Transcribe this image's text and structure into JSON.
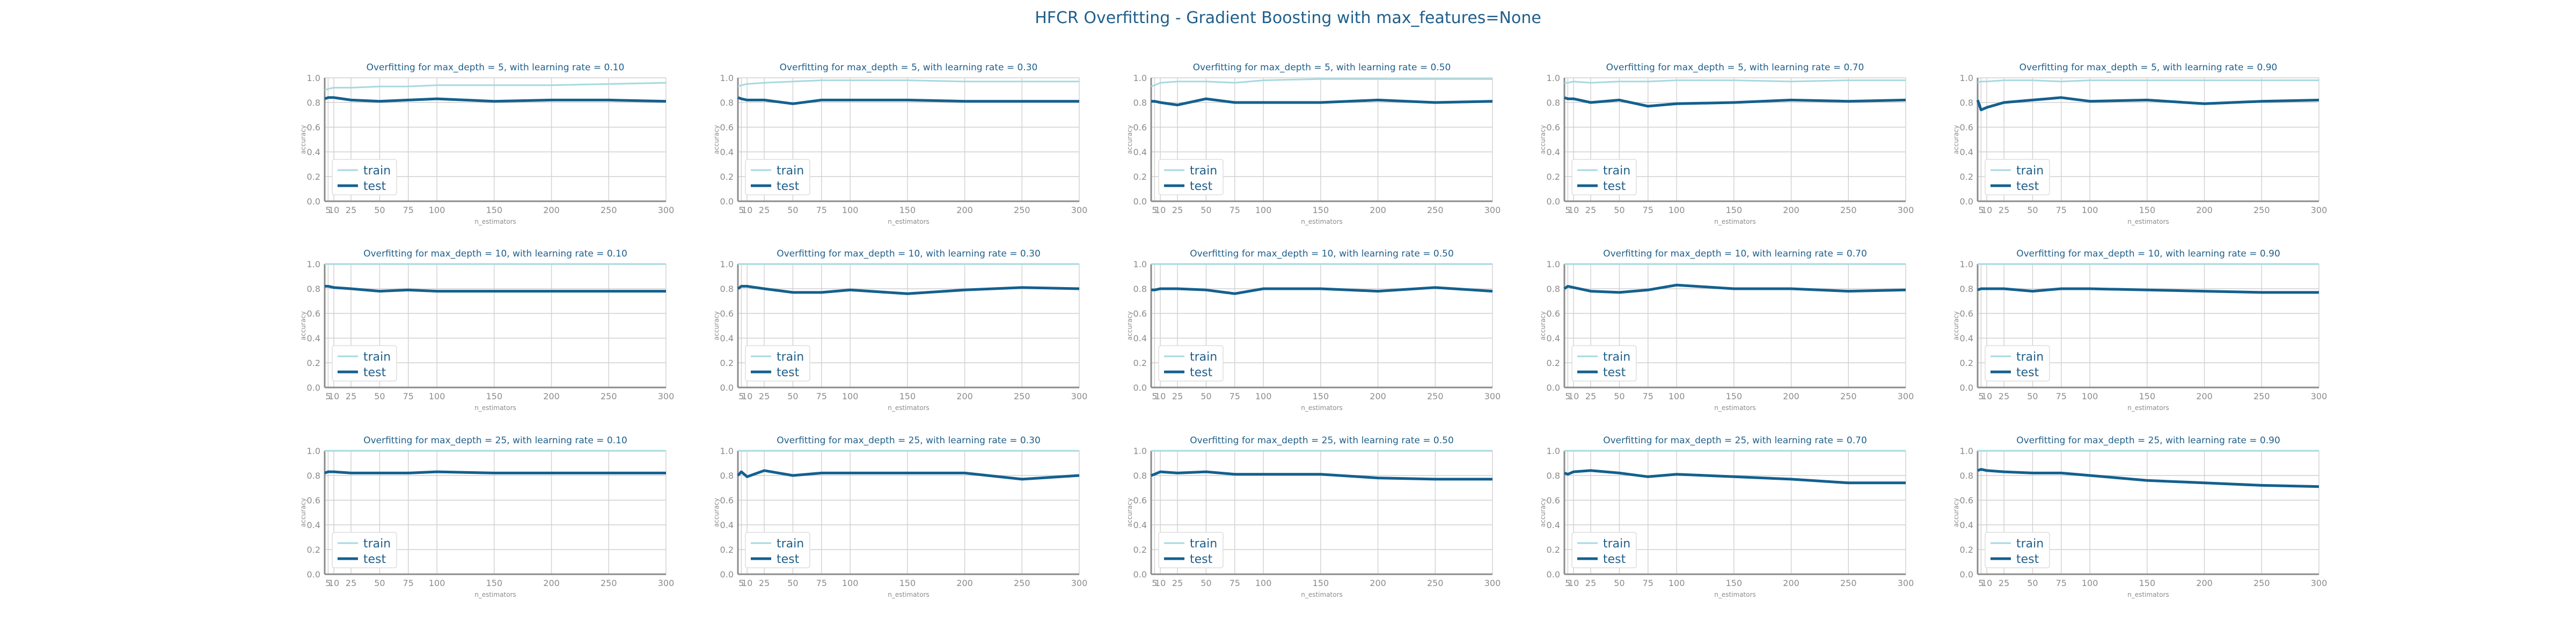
{
  "title": "HFCR Overfitting - Gradient Boosting with max_features=None",
  "colors": {
    "train": "#a6d9e0",
    "test": "#13608f",
    "title": "#1f5f8b",
    "grid": "#d0d0d0",
    "axis": "#8c8c8c"
  },
  "chart_data": {
    "type": "line",
    "layout": "grid 3 rows x 5 columns",
    "grid": true,
    "legend_position": "lower-left",
    "xlabel": "n_estimators",
    "ylabel": "accuracy",
    "xlim": [
      2,
      300
    ],
    "ylim": [
      0.0,
      1.0
    ],
    "x": [
      2,
      5,
      10,
      25,
      50,
      75,
      100,
      150,
      200,
      250,
      300
    ],
    "x_ticks": [
      5,
      10,
      25,
      50,
      75,
      100,
      150,
      200,
      250,
      300
    ],
    "y_ticks": [
      0.0,
      0.2,
      0.4,
      0.6,
      0.8,
      1.0
    ],
    "series_names": [
      "train",
      "test"
    ],
    "subplots": [
      {
        "title": "Overfitting for max_depth = 5, with learning rate = 0.10",
        "series": [
          {
            "name": "train",
            "values": [
              0.9,
              0.91,
              0.92,
              0.92,
              0.93,
              0.93,
              0.94,
              0.94,
              0.94,
              0.95,
              0.96
            ]
          },
          {
            "name": "test",
            "values": [
              0.83,
              0.84,
              0.84,
              0.82,
              0.81,
              0.82,
              0.83,
              0.81,
              0.82,
              0.82,
              0.81
            ]
          }
        ]
      },
      {
        "title": "Overfitting for max_depth = 5, with learning rate = 0.30",
        "series": [
          {
            "name": "train",
            "values": [
              0.93,
              0.94,
              0.95,
              0.96,
              0.97,
              0.98,
              0.98,
              0.98,
              0.97,
              0.97,
              0.97
            ]
          },
          {
            "name": "test",
            "values": [
              0.84,
              0.83,
              0.82,
              0.82,
              0.79,
              0.82,
              0.82,
              0.82,
              0.81,
              0.81,
              0.81
            ]
          }
        ]
      },
      {
        "title": "Overfitting for max_depth = 5, with learning rate = 0.50",
        "series": [
          {
            "name": "train",
            "values": [
              0.93,
              0.94,
              0.96,
              0.97,
              0.97,
              0.96,
              0.98,
              0.99,
              0.99,
              0.99,
              0.99
            ]
          },
          {
            "name": "test",
            "values": [
              0.81,
              0.81,
              0.8,
              0.78,
              0.83,
              0.8,
              0.8,
              0.8,
              0.82,
              0.8,
              0.81
            ]
          }
        ]
      },
      {
        "title": "Overfitting for max_depth = 5, with learning rate = 0.70",
        "series": [
          {
            "name": "train",
            "values": [
              0.96,
              0.96,
              0.97,
              0.96,
              0.97,
              0.97,
              0.98,
              0.98,
              0.97,
              0.98,
              0.98
            ]
          },
          {
            "name": "test",
            "values": [
              0.84,
              0.83,
              0.83,
              0.8,
              0.82,
              0.77,
              0.79,
              0.8,
              0.82,
              0.81,
              0.82
            ]
          }
        ]
      },
      {
        "title": "Overfitting for max_depth = 5, with learning rate = 0.90",
        "series": [
          {
            "name": "train",
            "values": [
              0.96,
              0.97,
              0.97,
              0.98,
              0.98,
              0.97,
              0.98,
              0.98,
              0.98,
              0.98,
              0.98
            ]
          },
          {
            "name": "test",
            "values": [
              0.82,
              0.74,
              0.76,
              0.8,
              0.82,
              0.84,
              0.81,
              0.82,
              0.79,
              0.81,
              0.82
            ]
          }
        ]
      },
      {
        "title": "Overfitting for max_depth = 10, with learning rate = 0.10",
        "series": [
          {
            "name": "train",
            "values": [
              1.0,
              1.0,
              1.0,
              1.0,
              1.0,
              1.0,
              1.0,
              1.0,
              1.0,
              1.0,
              1.0
            ]
          },
          {
            "name": "test",
            "values": [
              0.82,
              0.82,
              0.81,
              0.8,
              0.78,
              0.79,
              0.78,
              0.78,
              0.78,
              0.78,
              0.78
            ]
          }
        ]
      },
      {
        "title": "Overfitting for max_depth = 10, with learning rate = 0.30",
        "series": [
          {
            "name": "train",
            "values": [
              1.0,
              1.0,
              1.0,
              1.0,
              1.0,
              1.0,
              1.0,
              1.0,
              1.0,
              1.0,
              1.0
            ]
          },
          {
            "name": "test",
            "values": [
              0.8,
              0.82,
              0.82,
              0.8,
              0.77,
              0.77,
              0.79,
              0.76,
              0.79,
              0.81,
              0.8
            ]
          }
        ]
      },
      {
        "title": "Overfitting for max_depth = 10, with learning rate = 0.50",
        "series": [
          {
            "name": "train",
            "values": [
              1.0,
              1.0,
              1.0,
              1.0,
              1.0,
              1.0,
              1.0,
              1.0,
              1.0,
              1.0,
              1.0
            ]
          },
          {
            "name": "test",
            "values": [
              0.79,
              0.79,
              0.8,
              0.8,
              0.79,
              0.76,
              0.8,
              0.8,
              0.78,
              0.81,
              0.78
            ]
          }
        ]
      },
      {
        "title": "Overfitting for max_depth = 10, with learning rate = 0.70",
        "series": [
          {
            "name": "train",
            "values": [
              1.0,
              1.0,
              1.0,
              1.0,
              1.0,
              1.0,
              1.0,
              1.0,
              1.0,
              1.0,
              1.0
            ]
          },
          {
            "name": "test",
            "values": [
              0.8,
              0.82,
              0.81,
              0.78,
              0.77,
              0.79,
              0.83,
              0.8,
              0.8,
              0.78,
              0.79
            ]
          }
        ]
      },
      {
        "title": "Overfitting for max_depth = 10, with learning rate = 0.90",
        "series": [
          {
            "name": "train",
            "values": [
              1.0,
              1.0,
              1.0,
              1.0,
              1.0,
              1.0,
              1.0,
              1.0,
              1.0,
              1.0,
              1.0
            ]
          },
          {
            "name": "test",
            "values": [
              0.79,
              0.8,
              0.8,
              0.8,
              0.78,
              0.8,
              0.8,
              0.79,
              0.78,
              0.77,
              0.77
            ]
          }
        ]
      },
      {
        "title": "Overfitting for max_depth = 25, with learning rate = 0.10",
        "series": [
          {
            "name": "train",
            "values": [
              1.0,
              1.0,
              1.0,
              1.0,
              1.0,
              1.0,
              1.0,
              1.0,
              1.0,
              1.0,
              1.0
            ]
          },
          {
            "name": "test",
            "values": [
              0.82,
              0.83,
              0.83,
              0.82,
              0.82,
              0.82,
              0.83,
              0.82,
              0.82,
              0.82,
              0.82
            ]
          }
        ]
      },
      {
        "title": "Overfitting for max_depth = 25, with learning rate = 0.30",
        "series": [
          {
            "name": "train",
            "values": [
              1.0,
              1.0,
              1.0,
              1.0,
              1.0,
              1.0,
              1.0,
              1.0,
              1.0,
              1.0,
              1.0
            ]
          },
          {
            "name": "test",
            "values": [
              0.8,
              0.83,
              0.79,
              0.84,
              0.8,
              0.82,
              0.82,
              0.82,
              0.82,
              0.77,
              0.8
            ]
          }
        ]
      },
      {
        "title": "Overfitting for max_depth = 25, with learning rate = 0.50",
        "series": [
          {
            "name": "train",
            "values": [
              1.0,
              1.0,
              1.0,
              1.0,
              1.0,
              1.0,
              1.0,
              1.0,
              1.0,
              1.0,
              1.0
            ]
          },
          {
            "name": "test",
            "values": [
              0.8,
              0.81,
              0.83,
              0.82,
              0.83,
              0.81,
              0.81,
              0.81,
              0.78,
              0.77,
              0.77
            ]
          }
        ]
      },
      {
        "title": "Overfitting for max_depth = 25, with learning rate = 0.70",
        "series": [
          {
            "name": "train",
            "values": [
              1.0,
              1.0,
              1.0,
              1.0,
              1.0,
              1.0,
              1.0,
              1.0,
              1.0,
              1.0,
              1.0
            ]
          },
          {
            "name": "test",
            "values": [
              0.82,
              0.81,
              0.83,
              0.84,
              0.82,
              0.79,
              0.81,
              0.79,
              0.77,
              0.74,
              0.74
            ]
          }
        ]
      },
      {
        "title": "Overfitting for max_depth = 25, with learning rate = 0.90",
        "series": [
          {
            "name": "train",
            "values": [
              1.0,
              1.0,
              1.0,
              1.0,
              1.0,
              1.0,
              1.0,
              1.0,
              1.0,
              1.0,
              1.0
            ]
          },
          {
            "name": "test",
            "values": [
              0.84,
              0.85,
              0.84,
              0.83,
              0.82,
              0.82,
              0.8,
              0.76,
              0.74,
              0.72,
              0.71
            ]
          }
        ]
      }
    ]
  }
}
